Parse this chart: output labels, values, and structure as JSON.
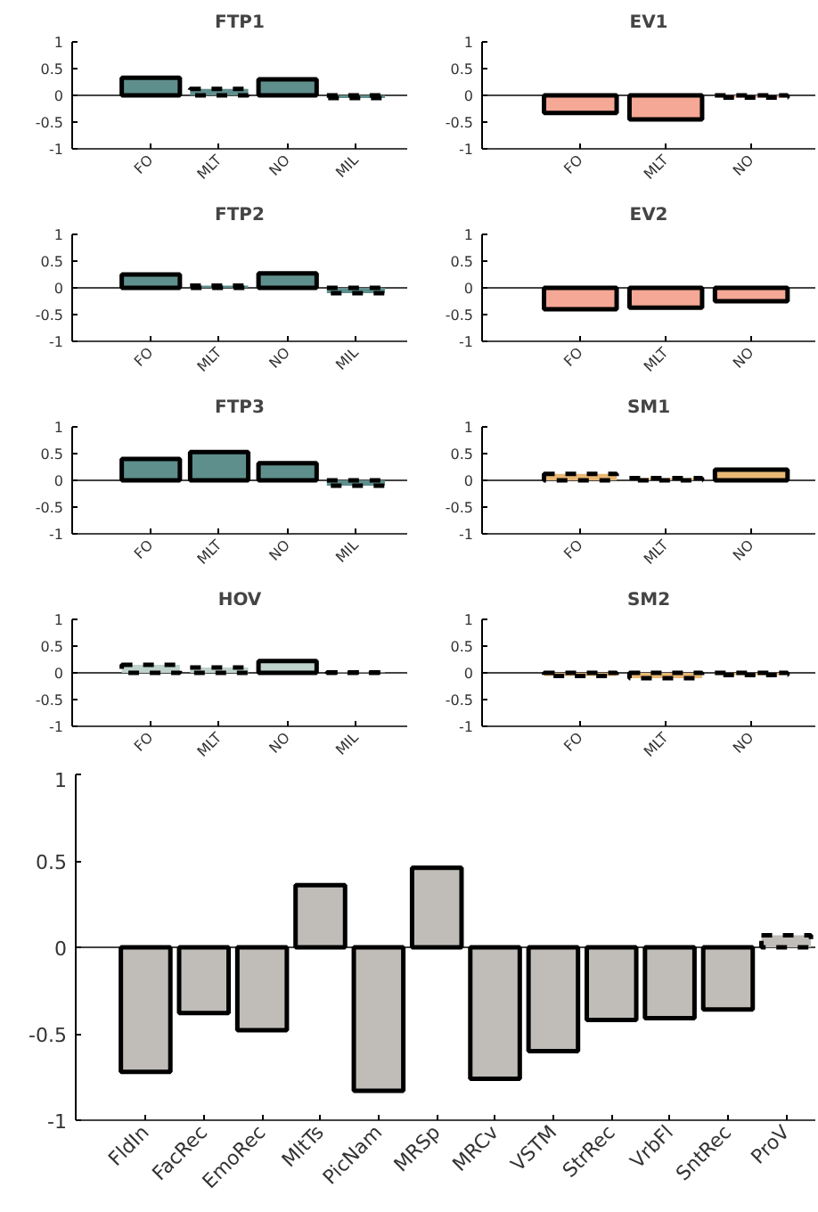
{
  "chart_data": [
    {
      "type": "bar",
      "title": "FTP1",
      "categories": [
        "FO",
        "MLT",
        "NO",
        "MIL"
      ],
      "ylim": [
        -1,
        1
      ],
      "yticks": [
        -1,
        -0.5,
        0,
        0.5,
        1
      ],
      "grid": false,
      "ref_lines": [
        {
          "axis": "y",
          "value": 0
        }
      ],
      "series": [
        {
          "color": "#5f8f8c",
          "line_style": "solid",
          "values": [
            0.33,
            null,
            0.3,
            null
          ]
        },
        {
          "color": "#5f8f8c",
          "line_style": "dashed",
          "values": [
            null,
            0.12,
            null,
            -0.05
          ]
        }
      ]
    },
    {
      "type": "bar",
      "title": "EV1",
      "categories": [
        "FO",
        "MLT",
        "NO"
      ],
      "ylim": [
        -1,
        1
      ],
      "yticks": [
        -1,
        -0.5,
        0,
        0.5,
        1
      ],
      "grid": false,
      "ref_lines": [
        {
          "axis": "y",
          "value": 0
        }
      ],
      "series": [
        {
          "color": "#f4a895",
          "line_style": "solid",
          "values": [
            -0.33,
            -0.45,
            null
          ]
        },
        {
          "color": "#f4a895",
          "line_style": "dashed",
          "values": [
            null,
            null,
            -0.04
          ]
        }
      ]
    },
    {
      "type": "bar",
      "title": "FTP2",
      "categories": [
        "FO",
        "MLT",
        "NO",
        "MIL"
      ],
      "ylim": [
        -1,
        1
      ],
      "yticks": [
        -1,
        -0.5,
        0,
        0.5,
        1
      ],
      "grid": false,
      "ref_lines": [
        {
          "axis": "y",
          "value": 0
        }
      ],
      "series": [
        {
          "color": "#5f8f8c",
          "line_style": "solid",
          "values": [
            0.25,
            null,
            0.27,
            null
          ]
        },
        {
          "color": "#5f8f8c",
          "line_style": "dashed",
          "values": [
            null,
            0.04,
            null,
            -0.1
          ]
        }
      ]
    },
    {
      "type": "bar",
      "title": "EV2",
      "categories": [
        "FO",
        "MLT",
        "NO"
      ],
      "ylim": [
        -1,
        1
      ],
      "yticks": [
        -1,
        -0.5,
        0,
        0.5,
        1
      ],
      "grid": false,
      "ref_lines": [
        {
          "axis": "y",
          "value": 0
        }
      ],
      "series": [
        {
          "color": "#f4a895",
          "line_style": "solid",
          "values": [
            -0.4,
            -0.37,
            -0.25
          ]
        }
      ]
    },
    {
      "type": "bar",
      "title": "FTP3",
      "categories": [
        "FO",
        "MLT",
        "NO",
        "MIL"
      ],
      "ylim": [
        -1,
        1
      ],
      "yticks": [
        -1,
        -0.5,
        0,
        0.5,
        1
      ],
      "grid": false,
      "ref_lines": [
        {
          "axis": "y",
          "value": 0
        }
      ],
      "series": [
        {
          "color": "#5f8f8c",
          "line_style": "solid",
          "values": [
            0.4,
            0.53,
            0.32,
            null
          ]
        },
        {
          "color": "#5f8f8c",
          "line_style": "dashed",
          "values": [
            null,
            null,
            null,
            -0.1
          ]
        }
      ]
    },
    {
      "type": "bar",
      "title": "SM1",
      "categories": [
        "FO",
        "MLT",
        "NO"
      ],
      "ylim": [
        -1,
        1
      ],
      "yticks": [
        -1,
        -0.5,
        0,
        0.5,
        1
      ],
      "grid": false,
      "ref_lines": [
        {
          "axis": "y",
          "value": 0
        }
      ],
      "series": [
        {
          "color": "#e9b874",
          "line_style": "solid",
          "values": [
            null,
            null,
            0.2
          ]
        },
        {
          "color": "#e9b874",
          "line_style": "dashed",
          "values": [
            0.12,
            0.04,
            null
          ]
        }
      ]
    },
    {
      "type": "bar",
      "title": "HOV",
      "categories": [
        "FO",
        "MLT",
        "NO",
        "MIL"
      ],
      "ylim": [
        -1,
        1
      ],
      "yticks": [
        -1,
        -0.5,
        0,
        0.5,
        1
      ],
      "grid": false,
      "ref_lines": [
        {
          "axis": "y",
          "value": 0
        }
      ],
      "series": [
        {
          "color": "#bfd3cc",
          "line_style": "solid",
          "values": [
            null,
            null,
            0.22,
            null
          ]
        },
        {
          "color": "#bfd3cc",
          "line_style": "dashed",
          "values": [
            0.15,
            0.1,
            null,
            0.01
          ]
        }
      ]
    },
    {
      "type": "bar",
      "title": "SM2",
      "categories": [
        "FO",
        "MLT",
        "NO"
      ],
      "ylim": [
        -1,
        1
      ],
      "yticks": [
        -1,
        -0.5,
        0,
        0.5,
        1
      ],
      "grid": false,
      "ref_lines": [
        {
          "axis": "y",
          "value": 0
        }
      ],
      "series": [
        {
          "color": "#e9b874",
          "line_style": "dashed",
          "values": [
            -0.06,
            -0.1,
            -0.04
          ]
        }
      ]
    },
    {
      "type": "bar",
      "categories": [
        "FldIn",
        "FacRec",
        "EmoRec",
        "MltTs",
        "PicNam",
        "MRSp",
        "MRCv",
        "VSTM",
        "StrRec",
        "VrbFl",
        "SntRec",
        "ProV"
      ],
      "ylim": [
        -1,
        1
      ],
      "yticks": [
        -1,
        -0.5,
        0,
        0.5,
        1
      ],
      "grid": false,
      "ref_lines": [
        {
          "axis": "y",
          "value": 0
        }
      ],
      "series": [
        {
          "color": "#c0bdb8",
          "line_style": "solid",
          "values": [
            -0.72,
            -0.38,
            -0.48,
            0.36,
            -0.83,
            0.46,
            -0.76,
            -0.6,
            -0.42,
            -0.41,
            -0.36,
            null
          ]
        },
        {
          "color": "#c0bdb8",
          "line_style": "dashed",
          "values": [
            null,
            null,
            null,
            null,
            null,
            null,
            null,
            null,
            null,
            null,
            null,
            0.07
          ]
        }
      ]
    }
  ]
}
